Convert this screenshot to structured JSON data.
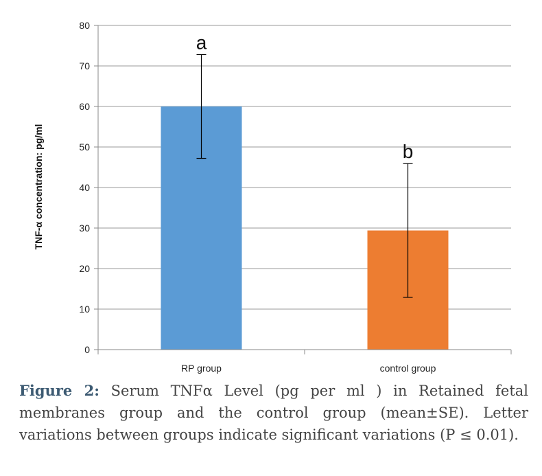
{
  "chart_data": {
    "type": "bar",
    "categories": [
      "RP group",
      "control group"
    ],
    "values": [
      60,
      29.4
    ],
    "errors": [
      12.8,
      16.5
    ],
    "significance_letters": [
      "a",
      "b"
    ],
    "colors": [
      "#5b9bd5",
      "#ed7d31"
    ],
    "ylabel": "TNF-α concentration: pg/ml",
    "ylim": [
      0,
      80
    ],
    "yticks": [
      "0",
      "10",
      "20",
      "30",
      "40",
      "50",
      "60",
      "70",
      "80"
    ],
    "grid": true,
    "legend": "none"
  },
  "caption": {
    "label": "Figure 2:",
    "text": " Serum TNFα  Level (pg per ml ) in Retained fetal membranes group and the control group (mean±SE). Letter variations between groups indicate significant variations (P ≤ 0.01)."
  }
}
